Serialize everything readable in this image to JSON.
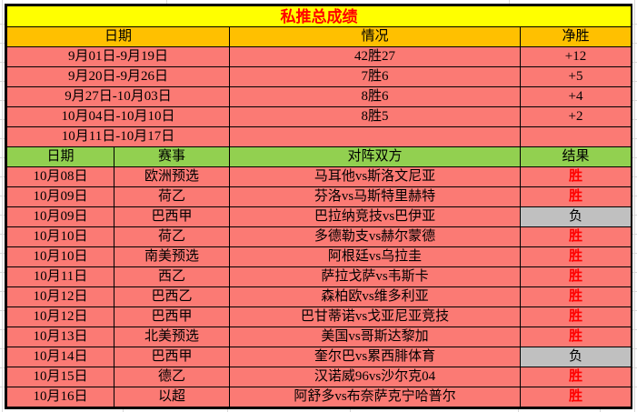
{
  "title": "私推总成绩",
  "summary": {
    "headers": [
      "日期",
      "情况",
      "净胜"
    ],
    "rows": [
      {
        "date": "9月01日-9月19日",
        "record": "42胜27",
        "net": "+12"
      },
      {
        "date": "9月20日-9月26日",
        "record": "7胜6",
        "net": "+5"
      },
      {
        "date": "9月27日-10月03日",
        "record": "8胜6",
        "net": "+4"
      },
      {
        "date": "10月04日-10月10日",
        "record": "8胜5",
        "net": "+2"
      },
      {
        "date": "10月11日-10月17日",
        "record": "",
        "net": ""
      }
    ]
  },
  "matches": {
    "headers": [
      "日期",
      "赛事",
      "对阵双方",
      "结果"
    ],
    "rows": [
      {
        "date": "10月08日",
        "league": "欧洲预选",
        "fixture": "马耳他vs斯洛文尼亚",
        "result": "胜",
        "win": true
      },
      {
        "date": "10月09日",
        "league": "荷乙",
        "fixture": "芬洛vs马斯特里赫特",
        "result": "胜",
        "win": true
      },
      {
        "date": "10月09日",
        "league": "巴西甲",
        "fixture": "巴拉纳竞技vs巴伊亚",
        "result": "负",
        "win": false
      },
      {
        "date": "10月10日",
        "league": "荷乙",
        "fixture": "多德勒支vs赫尔蒙德",
        "result": "胜",
        "win": true
      },
      {
        "date": "10月10日",
        "league": "南美预选",
        "fixture": "阿根廷vs乌拉圭",
        "result": "胜",
        "win": true
      },
      {
        "date": "10月11日",
        "league": "西乙",
        "fixture": "萨拉戈萨vs韦斯卡",
        "result": "胜",
        "win": true
      },
      {
        "date": "10月12日",
        "league": "巴西乙",
        "fixture": "森柏欧vs维多利亚",
        "result": "胜",
        "win": true
      },
      {
        "date": "10月12日",
        "league": "巴西甲",
        "fixture": "巴甘蒂诺vs戈亚尼亚竞技",
        "result": "胜",
        "win": true
      },
      {
        "date": "10月13日",
        "league": "北美预选",
        "fixture": "美国vs哥斯达黎加",
        "result": "胜",
        "win": true
      },
      {
        "date": "10月14日",
        "league": "巴西甲",
        "fixture": "奎尔巴vs累西腓体育",
        "result": "负",
        "win": false
      },
      {
        "date": "10月15日",
        "league": "德乙",
        "fixture": "汉诺威96vs沙尔克04",
        "result": "胜",
        "win": true
      },
      {
        "date": "10月16日",
        "league": "以超",
        "fixture": "阿舒多vs布奈萨克宁哈普尔",
        "result": "胜",
        "win": true
      }
    ]
  },
  "colors": {
    "title_bg": "#FFFF00",
    "title_text": "#FF0000",
    "header_bg": "#FFC000",
    "row_bg": "#FB7A74",
    "section2_header_bg": "#92D050",
    "loss_bg": "#C0C0C0",
    "win_text": "#FF0000"
  }
}
